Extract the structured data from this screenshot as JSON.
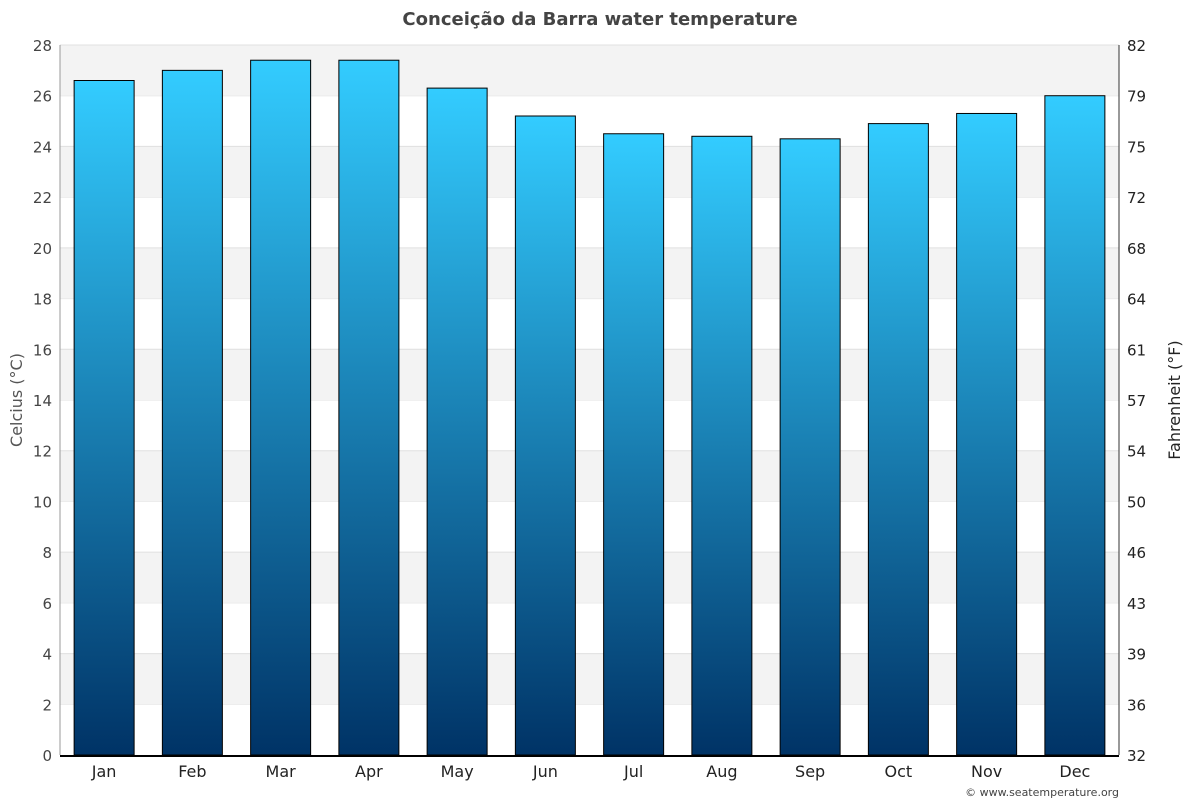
{
  "chart_data": {
    "type": "bar",
    "title": "Conceição da Barra water temperature",
    "ylabel": "Celcius (°C)",
    "y2label": "Fahrenheit (°F)",
    "categories": [
      "Jan",
      "Feb",
      "Mar",
      "Apr",
      "May",
      "Jun",
      "Jul",
      "Aug",
      "Sep",
      "Oct",
      "Nov",
      "Dec"
    ],
    "values": [
      26.6,
      27.0,
      27.4,
      27.4,
      26.3,
      25.2,
      24.5,
      24.4,
      24.3,
      24.9,
      25.3,
      26.0
    ],
    "ylim": [
      0,
      28
    ],
    "yticks": [
      0,
      2,
      4,
      6,
      8,
      10,
      12,
      14,
      16,
      18,
      20,
      22,
      24,
      26,
      28
    ],
    "y2ticks": [
      "32",
      "36",
      "39",
      "43",
      "46",
      "50",
      "54",
      "57",
      "61",
      "64",
      "68",
      "72",
      "75",
      "79",
      "82"
    ],
    "grid": true,
    "colors": {
      "bar_top": "#33ccff",
      "bar_bottom": "#003366",
      "band": "#f3f3f3"
    }
  },
  "credit": "© www.seatemperature.org"
}
